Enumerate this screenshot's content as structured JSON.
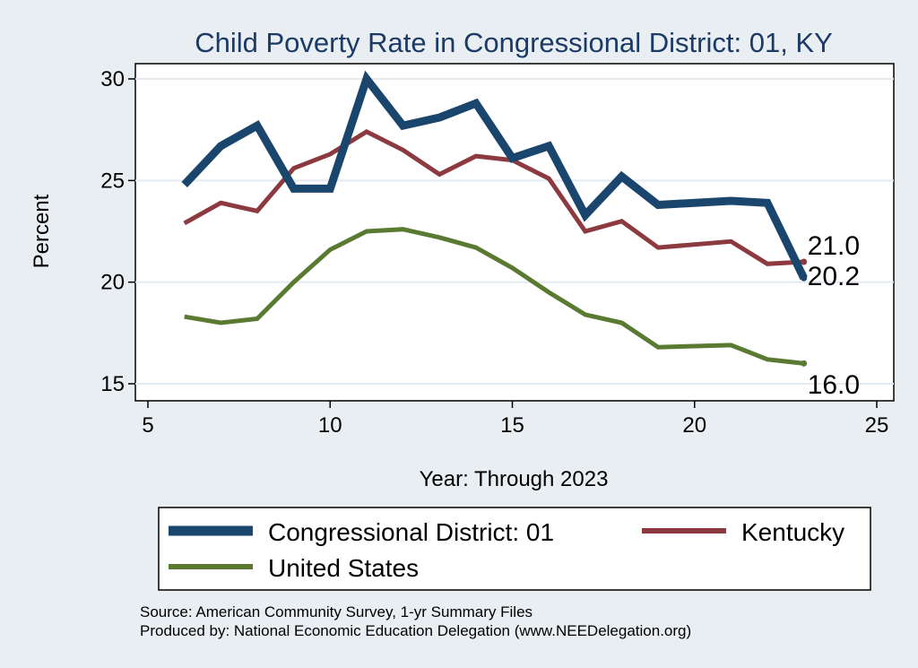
{
  "chart_data": {
    "type": "line",
    "title": "Child Poverty Rate in Congressional District:  01, KY",
    "xlabel": "Year: Through 2023",
    "ylabel": "Percent",
    "xlim": [
      5,
      25
    ],
    "ylim": [
      15,
      30
    ],
    "xticks": [
      5,
      10,
      15,
      20,
      25
    ],
    "yticks": [
      15,
      20,
      25,
      30
    ],
    "grid": true,
    "legend_position": "bottom",
    "x": [
      6,
      7,
      8,
      9,
      10,
      11,
      12,
      13,
      14,
      15,
      16,
      17,
      18,
      19,
      21,
      22,
      23
    ],
    "series": [
      {
        "name": "Congressional District:  01",
        "color": "#1a466e",
        "values": [
          24.8,
          26.7,
          27.7,
          24.6,
          24.6,
          30.0,
          27.7,
          28.1,
          28.8,
          26.1,
          26.7,
          23.3,
          25.2,
          23.8,
          24.0,
          23.9,
          20.2
        ],
        "end_label": "20.2"
      },
      {
        "name": "Kentucky",
        "color": "#8c3a40",
        "values": [
          22.9,
          23.9,
          23.5,
          25.6,
          26.3,
          27.4,
          26.5,
          25.3,
          26.2,
          26.0,
          25.1,
          22.5,
          23.0,
          21.7,
          22.0,
          20.9,
          21.0
        ],
        "end_label": "21.0"
      },
      {
        "name": "United States",
        "color": "#5a7a32",
        "values": [
          18.3,
          18.0,
          18.2,
          20.0,
          21.6,
          22.5,
          22.6,
          22.2,
          21.7,
          20.7,
          19.5,
          18.4,
          18.0,
          16.8,
          16.9,
          16.2,
          16.0
        ],
        "end_label": "16.0"
      }
    ]
  },
  "source_lines": [
    "Source: American Community Survey, 1-yr Summary Files",
    "Produced by: National Economic Education Delegation (www.NEEDelegation.org)"
  ]
}
